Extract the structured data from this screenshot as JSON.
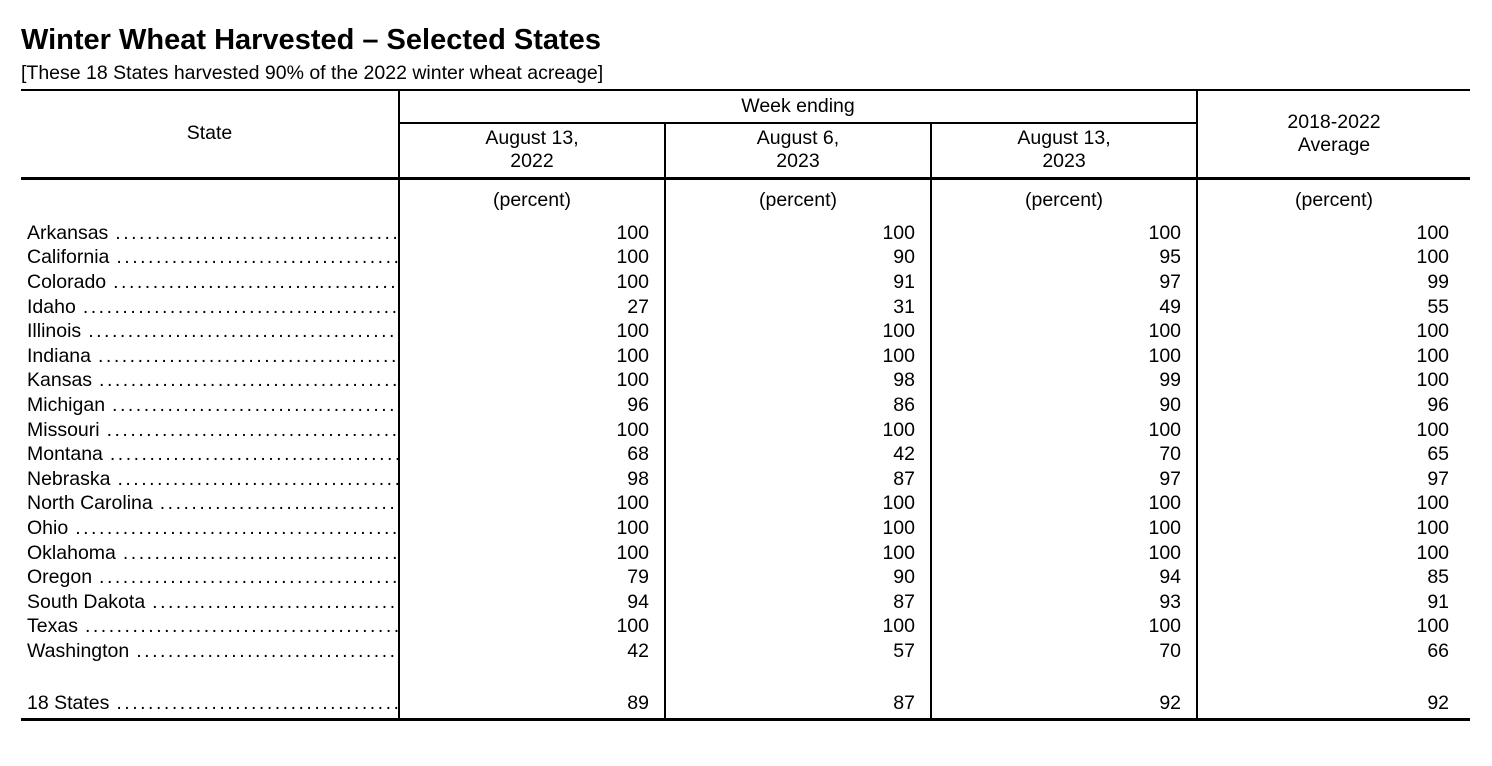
{
  "page": {
    "title": "Winter Wheat Harvested – Selected States",
    "subtitle": "[These 18 States harvested 90% of the 2022 winter wheat acreage]"
  },
  "table": {
    "state_header": "State",
    "week_ending_header": "Week ending",
    "average_header": "2018-2022\nAverage",
    "columns": [
      "August 13,\n2022",
      "August 6,\n2023",
      "August 13,\n2023"
    ],
    "unit": "(percent)",
    "dot_leader": "............................................................",
    "rows": [
      {
        "state": "Arkansas",
        "values": [
          100,
          100,
          100,
          100
        ]
      },
      {
        "state": "California",
        "values": [
          100,
          90,
          95,
          100
        ]
      },
      {
        "state": "Colorado",
        "values": [
          100,
          91,
          97,
          99
        ]
      },
      {
        "state": "Idaho",
        "values": [
          27,
          31,
          49,
          55
        ]
      },
      {
        "state": "Illinois",
        "values": [
          100,
          100,
          100,
          100
        ]
      },
      {
        "state": "Indiana",
        "values": [
          100,
          100,
          100,
          100
        ]
      },
      {
        "state": "Kansas",
        "values": [
          100,
          98,
          99,
          100
        ]
      },
      {
        "state": "Michigan",
        "values": [
          96,
          86,
          90,
          96
        ]
      },
      {
        "state": "Missouri",
        "values": [
          100,
          100,
          100,
          100
        ]
      },
      {
        "state": "Montana",
        "values": [
          68,
          42,
          70,
          65
        ]
      },
      {
        "state": "Nebraska",
        "values": [
          98,
          87,
          97,
          97
        ]
      },
      {
        "state": "North Carolina",
        "values": [
          100,
          100,
          100,
          100
        ]
      },
      {
        "state": "Ohio",
        "values": [
          100,
          100,
          100,
          100
        ]
      },
      {
        "state": "Oklahoma",
        "values": [
          100,
          100,
          100,
          100
        ]
      },
      {
        "state": "Oregon",
        "values": [
          79,
          90,
          94,
          85
        ]
      },
      {
        "state": "South Dakota",
        "values": [
          94,
          87,
          93,
          91
        ]
      },
      {
        "state": "Texas",
        "values": [
          100,
          100,
          100,
          100
        ]
      },
      {
        "state": "Washington",
        "values": [
          42,
          57,
          70,
          66
        ]
      }
    ],
    "total": {
      "state": "18 States",
      "values": [
        89,
        87,
        92,
        92
      ]
    }
  }
}
